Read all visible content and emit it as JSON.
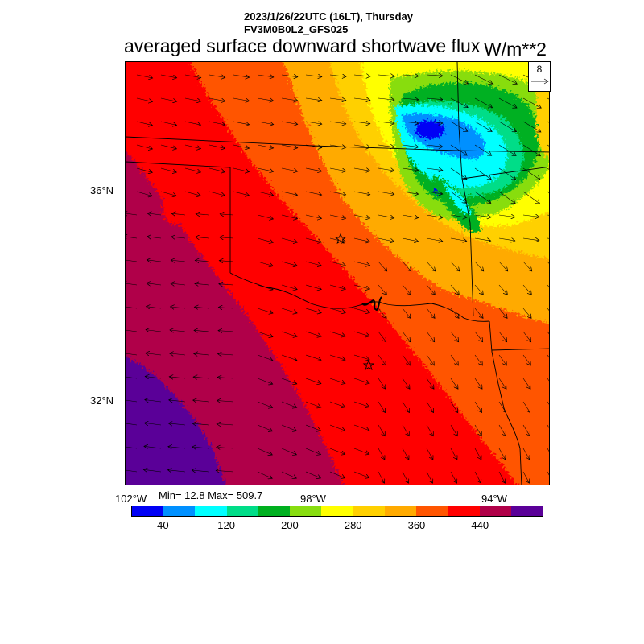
{
  "header": {
    "time_line": "2023/1/26/22UTC (16LT), Thursday",
    "model_line": "FV3M0B0L2_GFS025"
  },
  "title": "averaged surface downward shortwave flux",
  "units": "W/m**2",
  "stats": {
    "text": "Min= 12.8 Max= 509.7",
    "min": 12.8,
    "max": 509.7
  },
  "axes": {
    "lat_labels": [
      "36°N",
      "32°N"
    ],
    "lon_labels": [
      "102°W",
      "98°W",
      "94°W"
    ]
  },
  "colorbar": {
    "colors": [
      "#0000f5",
      "#0090ff",
      "#00ffff",
      "#00dd88",
      "#00b020",
      "#88dd10",
      "#ffff00",
      "#ffd000",
      "#ffaa00",
      "#ff5500",
      "#ff0000",
      "#b00048",
      "#5a0098"
    ],
    "tick_labels": [
      "40",
      "120",
      "200",
      "280",
      "360",
      "440"
    ],
    "tick_values": [
      40,
      120,
      200,
      280,
      360,
      440
    ],
    "range": [
      0,
      520
    ]
  },
  "vector_key": {
    "value": "8"
  },
  "markers": {
    "type": "star",
    "count": 2
  }
}
